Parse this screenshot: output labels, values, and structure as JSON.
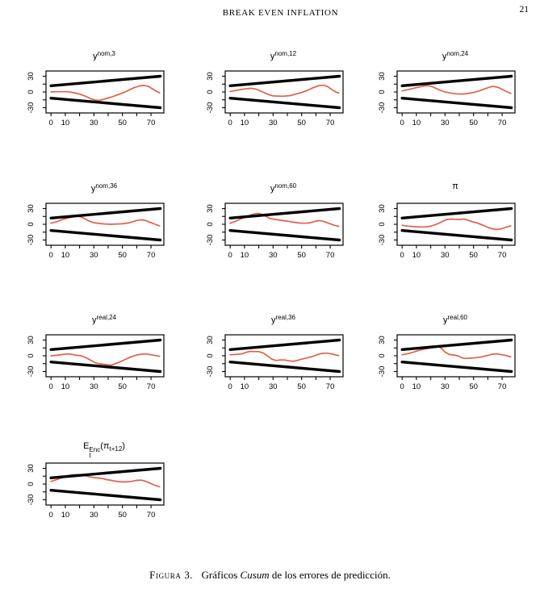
{
  "header": {
    "running_title": "BREAK EVEN INFLATION",
    "page_number": "21"
  },
  "caption": {
    "segments": [
      {
        "t": "Figura 3.",
        "smallcaps": true
      },
      {
        "t": " Gráficos ",
        "gap_before": true
      },
      {
        "t": "Cusum",
        "italic": true
      },
      {
        "t": " de los errores de predicción."
      }
    ]
  },
  "chart_data": {
    "type": "line",
    "description": "CUSUM plots of prediction errors with black significance boundary lines and red cusum process",
    "axes": {
      "x_ticks": [
        0,
        10,
        20,
        30,
        40,
        50,
        60,
        70
      ],
      "x_tick_labels": [
        0,
        10,
        30,
        50,
        70
      ],
      "y_ticks": [
        -30,
        -15,
        0,
        15,
        30
      ],
      "y_tick_labels": [
        -30,
        0,
        30
      ],
      "x_range": [
        -3.5,
        79
      ],
      "y_range": [
        -40,
        40
      ],
      "grid": false
    },
    "bounds": {
      "color": "#000000",
      "upper": [
        [
          0,
          11.8
        ],
        [
          76.5,
          30
        ]
      ],
      "lower": [
        [
          0,
          -11.8
        ],
        [
          76.5,
          -30
        ]
      ]
    },
    "series_color": "#e0604c",
    "charts": [
      {
        "id": "ynom3",
        "title_parts": [
          {
            "t": "y"
          },
          {
            "t": "nom,3",
            "style": "sup"
          }
        ],
        "points": [
          [
            0,
            0
          ],
          [
            4,
            0.5
          ],
          [
            8,
            0.5
          ],
          [
            12,
            0.5
          ],
          [
            16,
            -1.5
          ],
          [
            20,
            -4
          ],
          [
            24,
            -8
          ],
          [
            28,
            -13
          ],
          [
            31,
            -15.5
          ],
          [
            34,
            -16
          ],
          [
            38,
            -13
          ],
          [
            42,
            -10
          ],
          [
            46,
            -6
          ],
          [
            50,
            -2
          ],
          [
            54,
            3
          ],
          [
            58,
            8
          ],
          [
            62,
            11.5
          ],
          [
            65,
            12.5
          ],
          [
            68,
            11
          ],
          [
            71,
            6
          ],
          [
            74,
            1
          ],
          [
            76,
            -1.5
          ]
        ]
      },
      {
        "id": "ynom12",
        "title_parts": [
          {
            "t": "y"
          },
          {
            "t": "nom,12",
            "style": "sup"
          }
        ],
        "points": [
          [
            0,
            1
          ],
          [
            4,
            3
          ],
          [
            8,
            5
          ],
          [
            12,
            6.5
          ],
          [
            15,
            7
          ],
          [
            18,
            5.5
          ],
          [
            22,
            1
          ],
          [
            26,
            -4
          ],
          [
            30,
            -7.5
          ],
          [
            34,
            -8
          ],
          [
            38,
            -8
          ],
          [
            42,
            -7
          ],
          [
            46,
            -4
          ],
          [
            50,
            -1
          ],
          [
            54,
            3
          ],
          [
            58,
            8
          ],
          [
            62,
            12
          ],
          [
            65,
            13
          ],
          [
            68,
            11
          ],
          [
            71,
            5
          ],
          [
            74,
            0
          ],
          [
            76,
            -2
          ]
        ]
      },
      {
        "id": "ynom24",
        "title_parts": [
          {
            "t": "y"
          },
          {
            "t": "nom,24",
            "style": "sup"
          }
        ],
        "points": [
          [
            0,
            2
          ],
          [
            4,
            4.5
          ],
          [
            8,
            7
          ],
          [
            12,
            9.5
          ],
          [
            16,
            11.5
          ],
          [
            19,
            12
          ],
          [
            22,
            9
          ],
          [
            26,
            4
          ],
          [
            30,
            0
          ],
          [
            34,
            -2
          ],
          [
            38,
            -3.5
          ],
          [
            42,
            -4
          ],
          [
            46,
            -3
          ],
          [
            50,
            -1
          ],
          [
            54,
            2
          ],
          [
            58,
            6
          ],
          [
            62,
            10
          ],
          [
            64,
            10.5
          ],
          [
            67,
            9
          ],
          [
            70,
            5
          ],
          [
            73,
            1
          ],
          [
            76,
            -3
          ]
        ]
      },
      {
        "id": "ynom36",
        "title_parts": [
          {
            "t": "y"
          },
          {
            "t": "nom,36",
            "style": "sup"
          }
        ],
        "points": [
          [
            0,
            2
          ],
          [
            4,
            5
          ],
          [
            8,
            9
          ],
          [
            12,
            12
          ],
          [
            16,
            14.5
          ],
          [
            19,
            15.5
          ],
          [
            22,
            13
          ],
          [
            26,
            7
          ],
          [
            30,
            3
          ],
          [
            34,
            1.5
          ],
          [
            38,
            0.5
          ],
          [
            42,
            0
          ],
          [
            46,
            0.5
          ],
          [
            50,
            1
          ],
          [
            54,
            2.5
          ],
          [
            58,
            5.5
          ],
          [
            61,
            8
          ],
          [
            64,
            8.5
          ],
          [
            67,
            6.5
          ],
          [
            70,
            3
          ],
          [
            73,
            0
          ],
          [
            76,
            -3
          ]
        ]
      },
      {
        "id": "ynom60",
        "title_parts": [
          {
            "t": "y"
          },
          {
            "t": "nom,60",
            "style": "sup"
          }
        ],
        "points": [
          [
            0,
            2
          ],
          [
            4,
            6
          ],
          [
            8,
            11
          ],
          [
            12,
            15
          ],
          [
            16,
            19
          ],
          [
            19,
            21
          ],
          [
            22,
            19
          ],
          [
            25,
            15
          ],
          [
            28,
            11
          ],
          [
            32,
            9
          ],
          [
            36,
            7.5
          ],
          [
            40,
            6
          ],
          [
            44,
            4
          ],
          [
            48,
            2.5
          ],
          [
            52,
            2
          ],
          [
            56,
            3
          ],
          [
            60,
            6
          ],
          [
            63,
            7
          ],
          [
            66,
            5
          ],
          [
            70,
            1
          ],
          [
            73,
            -2
          ],
          [
            76,
            -4
          ]
        ]
      },
      {
        "id": "pi",
        "title_parts": [
          {
            "t": "π"
          }
        ],
        "points": [
          [
            0,
            -2
          ],
          [
            4,
            -3.5
          ],
          [
            8,
            -4.5
          ],
          [
            12,
            -5
          ],
          [
            16,
            -5
          ],
          [
            20,
            -3.5
          ],
          [
            24,
            0
          ],
          [
            28,
            5
          ],
          [
            31,
            9
          ],
          [
            34,
            10
          ],
          [
            37,
            9.5
          ],
          [
            40,
            9
          ],
          [
            43,
            10
          ],
          [
            46,
            8
          ],
          [
            49,
            5
          ],
          [
            52,
            3
          ],
          [
            56,
            -1
          ],
          [
            60,
            -6
          ],
          [
            63,
            -8.5
          ],
          [
            66,
            -10
          ],
          [
            69,
            -9
          ],
          [
            72,
            -6.5
          ],
          [
            76,
            -3
          ]
        ]
      },
      {
        "id": "yreal24",
        "title_parts": [
          {
            "t": "y"
          },
          {
            "t": "real,24",
            "style": "sup"
          }
        ],
        "points": [
          [
            0,
            0
          ],
          [
            4,
            1
          ],
          [
            8,
            2.5
          ],
          [
            12,
            3.5
          ],
          [
            15,
            2.5
          ],
          [
            18,
            1
          ],
          [
            21,
            0
          ],
          [
            24,
            -3
          ],
          [
            28,
            -9
          ],
          [
            32,
            -14.5
          ],
          [
            36,
            -16
          ],
          [
            39,
            -17
          ],
          [
            42,
            -18
          ],
          [
            45,
            -15
          ],
          [
            48,
            -12
          ],
          [
            52,
            -7
          ],
          [
            56,
            -2
          ],
          [
            60,
            1.5
          ],
          [
            63,
            3
          ],
          [
            66,
            3.5
          ],
          [
            70,
            2
          ],
          [
            73,
            0.5
          ],
          [
            76,
            -1
          ]
        ]
      },
      {
        "id": "yreal36",
        "title_parts": [
          {
            "t": "y"
          },
          {
            "t": "real,36",
            "style": "sup"
          }
        ],
        "points": [
          [
            0,
            2
          ],
          [
            4,
            2.5
          ],
          [
            8,
            3.5
          ],
          [
            11,
            6.5
          ],
          [
            14,
            8.5
          ],
          [
            17,
            8
          ],
          [
            20,
            8
          ],
          [
            23,
            5.5
          ],
          [
            26,
            0
          ],
          [
            29,
            -6
          ],
          [
            32,
            -9
          ],
          [
            35,
            -8
          ],
          [
            38,
            -8
          ],
          [
            41,
            -9.5
          ],
          [
            44,
            -10.5
          ],
          [
            47,
            -9
          ],
          [
            50,
            -6.5
          ],
          [
            54,
            -4
          ],
          [
            58,
            -1
          ],
          [
            62,
            3
          ],
          [
            65,
            5
          ],
          [
            68,
            5
          ],
          [
            71,
            3.5
          ],
          [
            74,
            1.5
          ],
          [
            76,
            0.5
          ]
        ]
      },
      {
        "id": "yreal60",
        "title_parts": [
          {
            "t": "y"
          },
          {
            "t": "real,60",
            "style": "sup"
          }
        ],
        "points": [
          [
            0,
            2
          ],
          [
            4,
            4
          ],
          [
            8,
            7
          ],
          [
            12,
            10.5
          ],
          [
            16,
            13
          ],
          [
            20,
            15
          ],
          [
            23,
            16.5
          ],
          [
            26,
            17
          ],
          [
            28,
            13
          ],
          [
            30,
            7
          ],
          [
            33,
            2.5
          ],
          [
            36,
            1.5
          ],
          [
            39,
            0
          ],
          [
            42,
            -4
          ],
          [
            45,
            -5
          ],
          [
            48,
            -4.5
          ],
          [
            52,
            -3.5
          ],
          [
            56,
            -2
          ],
          [
            60,
            1
          ],
          [
            63,
            3
          ],
          [
            66,
            3.5
          ],
          [
            69,
            2.5
          ],
          [
            72,
            1
          ],
          [
            76,
            -2
          ]
        ]
      },
      {
        "id": "enc-pi-t12",
        "title_parts": [
          {
            "t": "E"
          },
          {
            "stack": true,
            "sup": "Enc",
            "sub": "t"
          },
          {
            "t": "("
          },
          {
            "t": "π"
          },
          {
            "t": "t+12",
            "style": "sub"
          },
          {
            "t": ")"
          }
        ],
        "points": [
          [
            0,
            5
          ],
          [
            4,
            8.5
          ],
          [
            8,
            12.5
          ],
          [
            12,
            16
          ],
          [
            15,
            17.5
          ],
          [
            18,
            18
          ],
          [
            21,
            17.5
          ],
          [
            24,
            16
          ],
          [
            27,
            13.5
          ],
          [
            30,
            12.5
          ],
          [
            33,
            11.5
          ],
          [
            36,
            10.5
          ],
          [
            39,
            8.5
          ],
          [
            42,
            7
          ],
          [
            45,
            5.5
          ],
          [
            48,
            4.5
          ],
          [
            52,
            4
          ],
          [
            56,
            5
          ],
          [
            60,
            7
          ],
          [
            63,
            7.5
          ],
          [
            66,
            5.5
          ],
          [
            69,
            2
          ],
          [
            72,
            -1.5
          ],
          [
            76,
            -5
          ]
        ]
      }
    ]
  }
}
